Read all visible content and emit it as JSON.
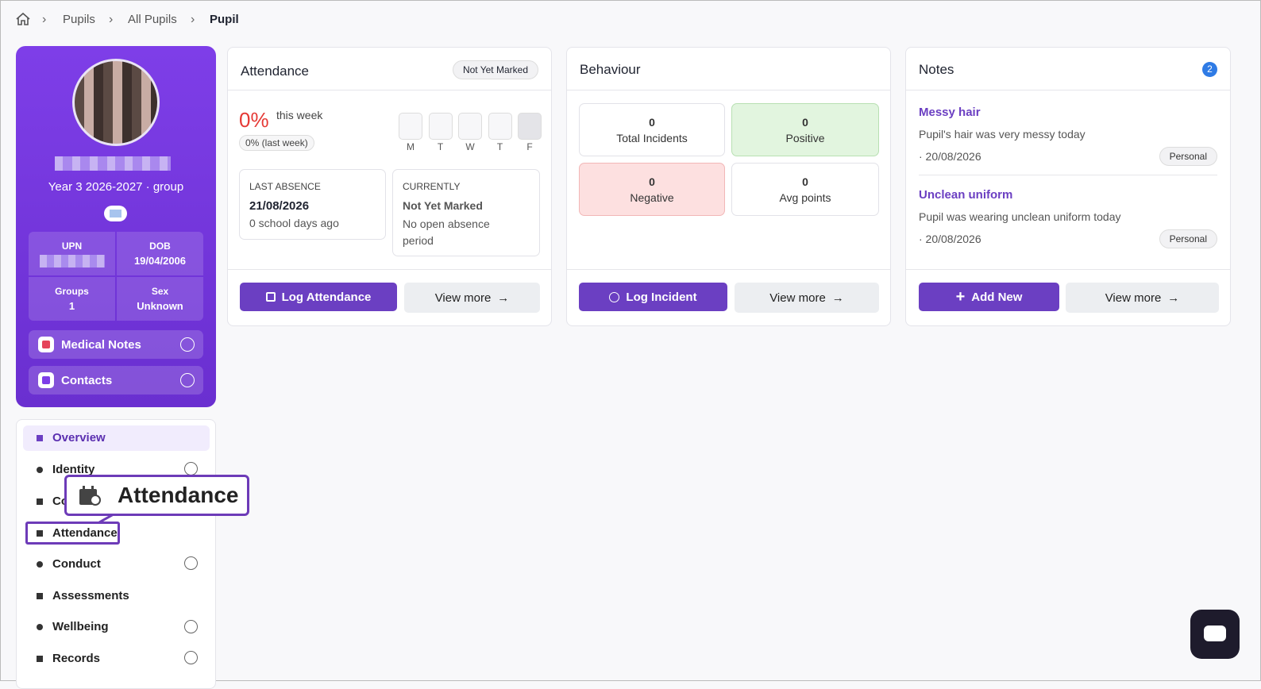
{
  "breadcrumb": [
    "Pupils",
    "All Pupils",
    "Pupil"
  ],
  "profile": {
    "class": "Year 3 2026-2027 · group",
    "fields": [
      {
        "label": "UPN"
      },
      {
        "label": "DOB",
        "value": "19/04/2006"
      },
      {
        "label": "Groups",
        "value": "1"
      },
      {
        "label": "Sex",
        "value": "Unknown"
      }
    ],
    "buttons": [
      "Medical Notes",
      "Contacts"
    ]
  },
  "nav": [
    "Overview",
    "Identity",
    "Contacts",
    "Attendance",
    "Conduct",
    "Assessments",
    "Wellbeing",
    "Records"
  ],
  "callout": "Attendance",
  "attendance": {
    "title": "Attendance",
    "badge": "Not Yet Marked",
    "percent": "0%",
    "period": "this week",
    "last_week": "0% (last week)",
    "days": [
      "M",
      "T",
      "W",
      "T",
      "F"
    ],
    "last_absence": {
      "label": "LAST ABSENCE",
      "date": "21/08/2026",
      "ago": "0 school days ago"
    },
    "currently": {
      "label": "CURRENTLY",
      "status": "Not Yet Marked",
      "detail": "No open absence period"
    },
    "buttons": [
      "Log Attendance",
      "View more"
    ]
  },
  "behaviour": {
    "title": "Behaviour",
    "stats": [
      {
        "value": "0",
        "label": "Total Incidents"
      },
      {
        "value": "0",
        "label": "Positive"
      },
      {
        "value": "0",
        "label": "Negative"
      },
      {
        "value": "0",
        "label": "Avg points"
      }
    ],
    "buttons": [
      "Log Incident",
      "View more"
    ]
  },
  "notes": {
    "title": "Notes",
    "count": "2",
    "items": [
      {
        "title": "Messy hair",
        "text": "Pupil's hair was very messy today",
        "date": "· 20/08/2026",
        "tag": "Personal"
      },
      {
        "title": "Unclean uniform",
        "text": "Pupil was wearing unclean uniform today",
        "date": "· 20/08/2026",
        "tag": "Personal"
      }
    ],
    "buttons": [
      "Add New",
      "View more"
    ]
  }
}
